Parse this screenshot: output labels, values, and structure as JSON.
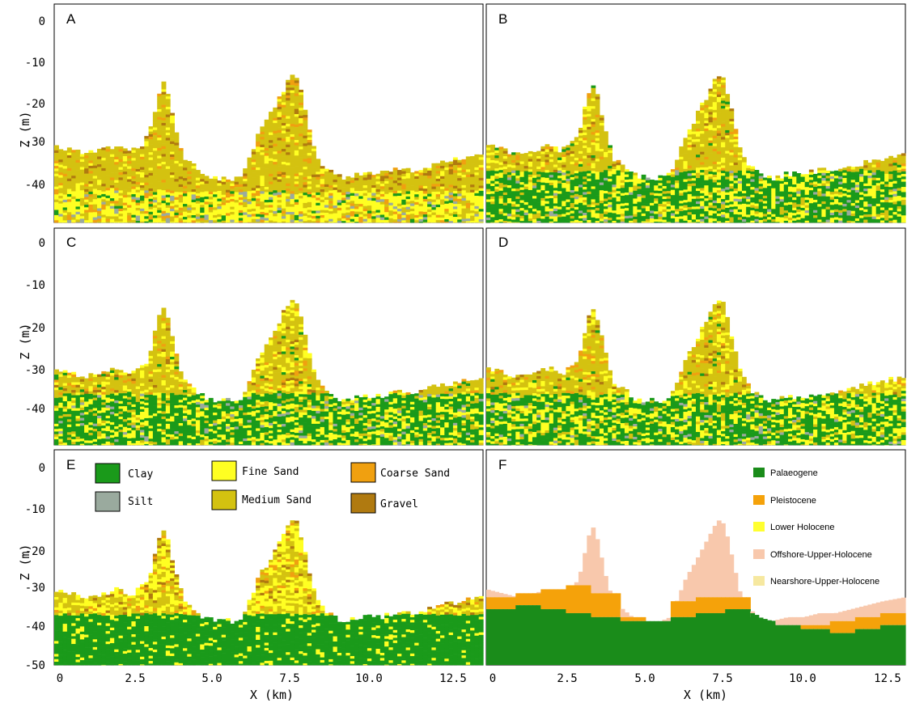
{
  "chart_data": {
    "type": "heatmap",
    "description_units": {
      "x": "km",
      "z": "m"
    },
    "xlabel": "X (km)",
    "ylabel": "Z (m)",
    "xlim": [
      0,
      13.2
    ],
    "ylim": [
      -50,
      4
    ],
    "xticks": [
      "0",
      "2.5",
      "5.0",
      "7.5",
      "10.0",
      "12.5"
    ],
    "yticks": [
      "0",
      "-10",
      "-20",
      "-30",
      "-40",
      "-50"
    ],
    "lithology_legend": [
      {
        "name": "Clay",
        "color": "#1a9a1a"
      },
      {
        "name": "Silt",
        "color": "#9aaa9e"
      },
      {
        "name": "Fine Sand",
        "color": "#ffff22"
      },
      {
        "name": "Medium Sand",
        "color": "#d4c210"
      },
      {
        "name": "Coarse Sand",
        "color": "#f0a010"
      },
      {
        "name": "Gravel",
        "color": "#b07a10"
      }
    ],
    "stratigraphy_legend": [
      {
        "name": "Palaeogene",
        "color": "#1a8c1a"
      },
      {
        "name": "Pleistocene",
        "color": "#f5a20a"
      },
      {
        "name": "Lower Holocene",
        "color": "#ffff30"
      },
      {
        "name": "Offshore-Upper-Holocene",
        "color": "#f8c8ac"
      },
      {
        "name": "Nearshore-Upper-Holocene",
        "color": "#f6e8a0"
      }
    ],
    "surface_profile": {
      "x": [
        0,
        0.5,
        1.0,
        1.5,
        2.0,
        2.3,
        2.5,
        2.6,
        2.8,
        3.0,
        3.2,
        3.4,
        3.6,
        3.8,
        4.0,
        4.3,
        4.6,
        5.0,
        5.5,
        5.8,
        6.0,
        6.3,
        6.6,
        7.0,
        7.2,
        7.4,
        7.6,
        7.8,
        8.0,
        8.3,
        8.6,
        9.0,
        9.5,
        10.0,
        10.5,
        11.0,
        11.5,
        12.0,
        12.5,
        13.2
      ],
      "z": [
        -31,
        -32,
        -33,
        -32,
        -31,
        -32,
        -32,
        -31,
        -30,
        -26,
        -18,
        -15,
        -22,
        -29,
        -34,
        -36,
        -38,
        -39,
        -39,
        -38,
        -34,
        -28,
        -24,
        -18,
        -15,
        -13,
        -18,
        -25,
        -32,
        -36,
        -38,
        -39,
        -38,
        -38,
        -37,
        -37,
        -36,
        -35,
        -34,
        -33
      ]
    },
    "panels": [
      {
        "label": "A",
        "model": "lithology",
        "base_clay_top": -49,
        "fine_sand_base": -42,
        "orange_stripes": true
      },
      {
        "label": "B",
        "model": "lithology",
        "base_clay_top": -37
      },
      {
        "label": "C",
        "model": "lithology",
        "base_clay_top": -37
      },
      {
        "label": "D",
        "model": "lithology",
        "base_clay_top": -37
      },
      {
        "label": "E",
        "model": "lithology",
        "base_clay_top": -37,
        "show_legend": true
      },
      {
        "label": "F",
        "model": "stratigraphy",
        "palaeogene_top": [
          -36,
          -35,
          -36,
          -37,
          -38,
          -39,
          -39,
          -38,
          -37,
          -36,
          -37,
          -40,
          -41,
          -42,
          -41,
          -40
        ],
        "pleistocene_top": [
          -33,
          -32,
          -31,
          -30,
          -32,
          -38,
          -39,
          -34,
          -33,
          -33,
          -38,
          -40,
          -40,
          -39,
          -38,
          -37
        ]
      }
    ]
  }
}
